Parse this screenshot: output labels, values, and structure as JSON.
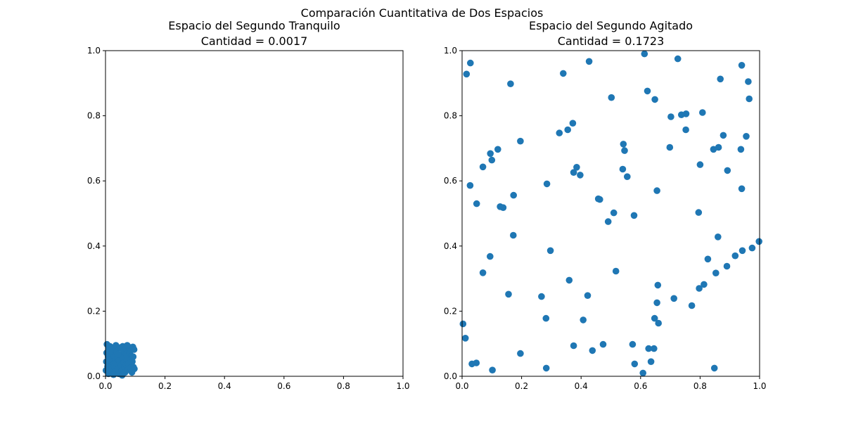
{
  "suptitle": "Comparación Cuantitativa de Dos Espacios",
  "chart_data": [
    {
      "type": "scatter",
      "title": "Espacio del Segundo Tranquilo",
      "subtitle": "Cantidad = 0.0017",
      "xlim": [
        0,
        1
      ],
      "ylim": [
        0,
        1
      ],
      "xticks": [
        "0.0",
        "0.2",
        "0.4",
        "0.6",
        "0.8",
        "1.0"
      ],
      "yticks": [
        "0.0",
        "0.2",
        "0.4",
        "0.6",
        "0.8",
        "1.0"
      ],
      "grid": false,
      "color": "#1f77b4",
      "points": [
        [
          0.005,
          0.098
        ],
        [
          0.012,
          0.085
        ],
        [
          0.004,
          0.072
        ],
        [
          0.009,
          0.06
        ],
        [
          0.003,
          0.045
        ],
        [
          0.007,
          0.03
        ],
        [
          0.002,
          0.018
        ],
        [
          0.01,
          0.008
        ],
        [
          0.015,
          0.092
        ],
        [
          0.018,
          0.07
        ],
        [
          0.02,
          0.052
        ],
        [
          0.014,
          0.038
        ],
        [
          0.022,
          0.025
        ],
        [
          0.017,
          0.012
        ],
        [
          0.026,
          0.082
        ],
        [
          0.028,
          0.06
        ],
        [
          0.024,
          0.044
        ],
        [
          0.03,
          0.03
        ],
        [
          0.032,
          0.015
        ],
        [
          0.035,
          0.095
        ],
        [
          0.038,
          0.075
        ],
        [
          0.04,
          0.055
        ],
        [
          0.036,
          0.04
        ],
        [
          0.042,
          0.022
        ],
        [
          0.045,
          0.008
        ],
        [
          0.048,
          0.088
        ],
        [
          0.05,
          0.065
        ],
        [
          0.046,
          0.048
        ],
        [
          0.052,
          0.033
        ],
        [
          0.055,
          0.018
        ],
        [
          0.058,
          0.092
        ],
        [
          0.06,
          0.078
        ],
        [
          0.057,
          0.058
        ],
        [
          0.062,
          0.042
        ],
        [
          0.064,
          0.028
        ],
        [
          0.066,
          0.012
        ],
        [
          0.068,
          0.085
        ],
        [
          0.07,
          0.068
        ],
        [
          0.072,
          0.05
        ],
        [
          0.069,
          0.035
        ],
        [
          0.075,
          0.02
        ],
        [
          0.078,
          0.09
        ],
        [
          0.08,
          0.072
        ],
        [
          0.082,
          0.055
        ],
        [
          0.077,
          0.038
        ],
        [
          0.084,
          0.025
        ],
        [
          0.086,
          0.08
        ],
        [
          0.088,
          0.062
        ],
        [
          0.09,
          0.045
        ],
        [
          0.092,
          0.09
        ],
        [
          0.094,
          0.028
        ],
        [
          0.096,
          0.082
        ],
        [
          0.097,
          0.023
        ],
        [
          0.093,
          0.06
        ],
        [
          0.089,
          0.012
        ],
        [
          0.011,
          0.05
        ],
        [
          0.027,
          0.005
        ],
        [
          0.043,
          0.068
        ],
        [
          0.056,
          0.003
        ],
        [
          0.073,
          0.095
        ]
      ]
    },
    {
      "type": "scatter",
      "title": "Espacio del Segundo Agitado",
      "subtitle": "Cantidad = 0.1723",
      "xlim": [
        0,
        1
      ],
      "ylim": [
        0,
        1
      ],
      "xticks": [
        "0.0",
        "0.2",
        "0.4",
        "0.6",
        "0.8",
        "1.0"
      ],
      "yticks": [
        "0.0",
        "0.2",
        "0.4",
        "0.6",
        "0.8",
        "1.0"
      ],
      "grid": false,
      "color": "#1f77b4",
      "points": [
        [
          0.028,
          0.962
        ],
        [
          0.015,
          0.928
        ],
        [
          0.163,
          0.898
        ],
        [
          0.34,
          0.93
        ],
        [
          0.427,
          0.967
        ],
        [
          0.613,
          0.99
        ],
        [
          0.725,
          0.975
        ],
        [
          0.94,
          0.955
        ],
        [
          0.962,
          0.905
        ],
        [
          0.868,
          0.913
        ],
        [
          0.623,
          0.876
        ],
        [
          0.648,
          0.85
        ],
        [
          0.502,
          0.856
        ],
        [
          0.965,
          0.852
        ],
        [
          0.753,
          0.806
        ],
        [
          0.737,
          0.803
        ],
        [
          0.808,
          0.81
        ],
        [
          0.702,
          0.797
        ],
        [
          0.372,
          0.777
        ],
        [
          0.355,
          0.757
        ],
        [
          0.327,
          0.747
        ],
        [
          0.752,
          0.757
        ],
        [
          0.878,
          0.74
        ],
        [
          0.955,
          0.737
        ],
        [
          0.196,
          0.722
        ],
        [
          0.542,
          0.713
        ],
        [
          0.698,
          0.703
        ],
        [
          0.862,
          0.703
        ],
        [
          0.845,
          0.697
        ],
        [
          0.937,
          0.697
        ],
        [
          0.12,
          0.697
        ],
        [
          0.095,
          0.684
        ],
        [
          0.546,
          0.693
        ],
        [
          0.1,
          0.664
        ],
        [
          0.07,
          0.643
        ],
        [
          0.385,
          0.642
        ],
        [
          0.8,
          0.65
        ],
        [
          0.54,
          0.636
        ],
        [
          0.375,
          0.626
        ],
        [
          0.397,
          0.618
        ],
        [
          0.892,
          0.632
        ],
        [
          0.555,
          0.613
        ],
        [
          0.285,
          0.591
        ],
        [
          0.027,
          0.586
        ],
        [
          0.94,
          0.576
        ],
        [
          0.655,
          0.57
        ],
        [
          0.173,
          0.556
        ],
        [
          0.458,
          0.545
        ],
        [
          0.463,
          0.543
        ],
        [
          0.049,
          0.53
        ],
        [
          0.128,
          0.521
        ],
        [
          0.138,
          0.518
        ],
        [
          0.51,
          0.502
        ],
        [
          0.795,
          0.503
        ],
        [
          0.578,
          0.494
        ],
        [
          0.491,
          0.475
        ],
        [
          0.172,
          0.433
        ],
        [
          0.86,
          0.428
        ],
        [
          0.998,
          0.414
        ],
        [
          0.942,
          0.386
        ],
        [
          0.297,
          0.386
        ],
        [
          0.975,
          0.394
        ],
        [
          0.918,
          0.37
        ],
        [
          0.094,
          0.368
        ],
        [
          0.826,
          0.36
        ],
        [
          0.89,
          0.338
        ],
        [
          0.517,
          0.323
        ],
        [
          0.07,
          0.318
        ],
        [
          0.853,
          0.317
        ],
        [
          0.36,
          0.295
        ],
        [
          0.813,
          0.282
        ],
        [
          0.658,
          0.28
        ],
        [
          0.797,
          0.27
        ],
        [
          0.156,
          0.252
        ],
        [
          0.422,
          0.248
        ],
        [
          0.267,
          0.245
        ],
        [
          0.712,
          0.239
        ],
        [
          0.655,
          0.226
        ],
        [
          0.772,
          0.217
        ],
        [
          0.282,
          0.178
        ],
        [
          0.407,
          0.173
        ],
        [
          0.647,
          0.178
        ],
        [
          0.66,
          0.163
        ],
        [
          0.003,
          0.161
        ],
        [
          0.011,
          0.117
        ],
        [
          0.474,
          0.098
        ],
        [
          0.573,
          0.098
        ],
        [
          0.375,
          0.094
        ],
        [
          0.627,
          0.085
        ],
        [
          0.645,
          0.085
        ],
        [
          0.438,
          0.079
        ],
        [
          0.196,
          0.07
        ],
        [
          0.635,
          0.045
        ],
        [
          0.048,
          0.041
        ],
        [
          0.033,
          0.038
        ],
        [
          0.58,
          0.038
        ],
        [
          0.283,
          0.025
        ],
        [
          0.848,
          0.025
        ],
        [
          0.102,
          0.019
        ],
        [
          0.608,
          0.01
        ]
      ]
    }
  ]
}
